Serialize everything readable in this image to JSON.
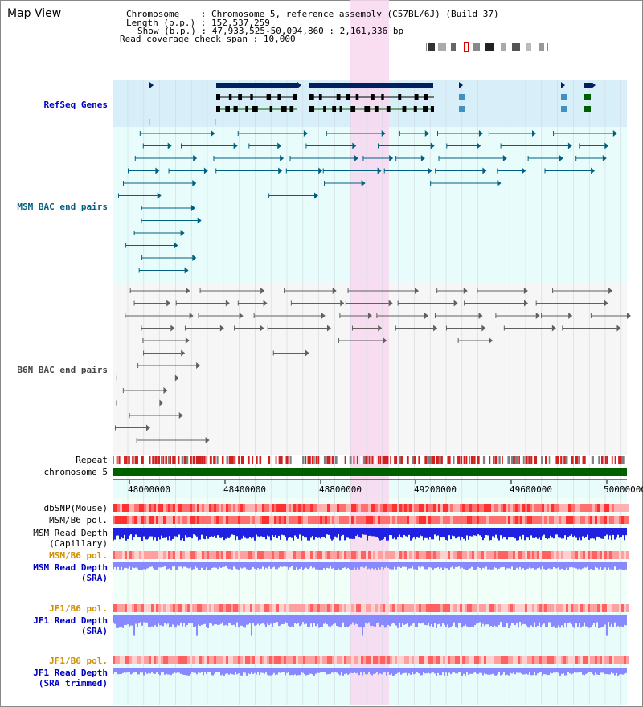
{
  "header": {
    "title": "Map View",
    "chromosome_key": "Chromosome",
    "chromosome_val": "Chromosome 5, reference assembly (C57BL/6J) (Build 37)",
    "length_key": "Length (b.p.)",
    "length_val": "152,537,259",
    "show_key": "Show (b.p.)",
    "show_val": "47,933,525-50,094,860 : 2,161,336 bp",
    "coverage_key": "Read coverage check span",
    "coverage_val": "10,000"
  },
  "tracks": {
    "refseq": "RefSeq Genes",
    "msm_bac": "MSM BAC end pairs",
    "b6n_bac": "B6N BAC end pairs",
    "repeat": "Repeat",
    "chromosome": "chromosome 5",
    "dbsnp": "dbSNP(Mouse)",
    "msm_b6_pol": "MSM/B6 pol.",
    "msm_read_depth_cap_1": "MSM Read Depth",
    "msm_read_depth_cap_2": "(Capillary)",
    "msm_b6_pol2": "MSM/B6 pol.",
    "msm_read_depth_sra_1": "MSM Read Depth",
    "msm_read_depth_sra_2": "(SRA)",
    "jf1_b6_pol": "JF1/B6 pol.",
    "jf1_read_depth_1": "JF1 Read Depth",
    "jf1_read_depth_2": "(SRA)",
    "jf1_b6_pol2": "JF1/B6 pol.",
    "jf1_trim_1": "JF1 Read Depth",
    "jf1_trim_2": "(SRA trimmed)"
  },
  "axis": {
    "ticks": [
      "48000000",
      "48400000",
      "48800000",
      "49200000",
      "49600000",
      "50000000"
    ]
  },
  "colors": {
    "highlight": "#f8d8f0",
    "refseq_bg": "#d8eef8",
    "gene": "#002060",
    "msm": "#006080",
    "b6n": "#606060",
    "chromosome": "#006000",
    "depth_blue": "#2020e0",
    "depth_light": "#8888ff"
  }
}
